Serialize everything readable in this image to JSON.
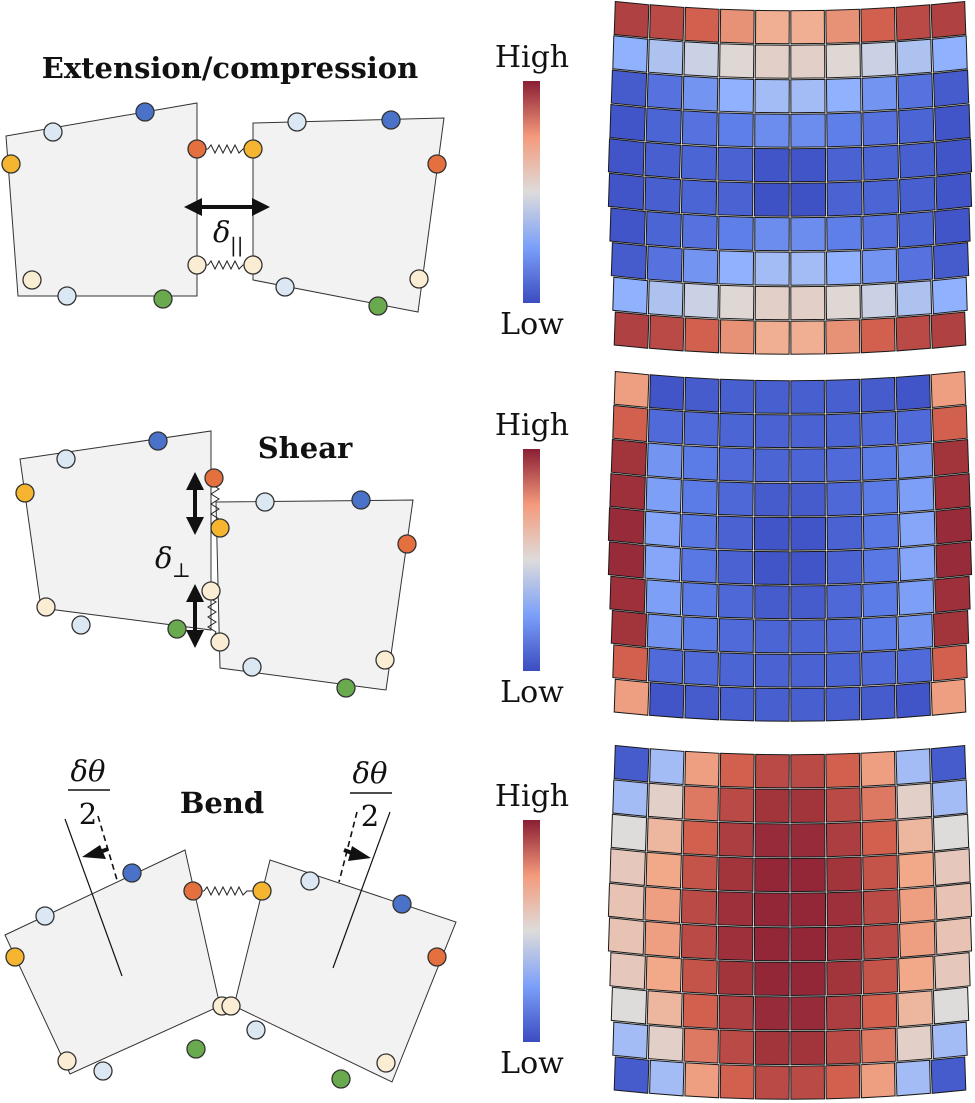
{
  "panels": [
    {
      "title": "Extension/compression",
      "delta_symbol": "δ",
      "delta_subscript": "||",
      "colorbar": {
        "high_label": "High",
        "low_label": "Low"
      }
    },
    {
      "title": "Shear",
      "delta_symbol": "δ",
      "delta_subscript": "⊥",
      "colorbar": {
        "high_label": "High",
        "low_label": "Low"
      }
    },
    {
      "title": "Bend",
      "angle_numerator": "δθ",
      "angle_denominator": "2",
      "colorbar": {
        "high_label": "High",
        "low_label": "Low"
      }
    }
  ],
  "colors": {
    "tile_fill": "#f2f2f2",
    "node_orange": "#e4703f",
    "node_yellow": "#f5b531",
    "node_blue": "#4a72c8",
    "node_lightblue": "#dbe8f4",
    "node_green": "#6aaa4f",
    "node_cream": "#fbedd3",
    "map_low": "#3b4cc0",
    "map_mid": "#dddcdb",
    "map_high": "#8a1e33"
  },
  "heatmaps": [
    {
      "name": "extension-energy-map",
      "rows": 10,
      "cols": 10,
      "values": [
        [
          0.92,
          0.9,
          0.85,
          0.75,
          0.68,
          0.68,
          0.75,
          0.85,
          0.9,
          0.92
        ],
        [
          0.3,
          0.38,
          0.45,
          0.52,
          0.55,
          0.55,
          0.52,
          0.45,
          0.38,
          0.3
        ],
        [
          0.05,
          0.12,
          0.22,
          0.3,
          0.35,
          0.35,
          0.3,
          0.22,
          0.12,
          0.05
        ],
        [
          0.03,
          0.08,
          0.12,
          0.16,
          0.2,
          0.2,
          0.16,
          0.12,
          0.08,
          0.03
        ],
        [
          0.03,
          0.06,
          0.08,
          0.07,
          0.03,
          0.03,
          0.07,
          0.08,
          0.06,
          0.03
        ],
        [
          0.03,
          0.06,
          0.08,
          0.07,
          0.02,
          0.02,
          0.07,
          0.08,
          0.06,
          0.03
        ],
        [
          0.03,
          0.08,
          0.12,
          0.16,
          0.2,
          0.2,
          0.16,
          0.12,
          0.08,
          0.03
        ],
        [
          0.05,
          0.12,
          0.22,
          0.3,
          0.35,
          0.35,
          0.3,
          0.22,
          0.12,
          0.05
        ],
        [
          0.3,
          0.38,
          0.45,
          0.52,
          0.55,
          0.55,
          0.52,
          0.45,
          0.38,
          0.3
        ],
        [
          0.92,
          0.9,
          0.85,
          0.75,
          0.68,
          0.68,
          0.75,
          0.85,
          0.9,
          0.92
        ]
      ]
    },
    {
      "name": "shear-energy-map",
      "rows": 10,
      "cols": 10,
      "values": [
        [
          0.72,
          0.03,
          0.05,
          0.06,
          0.06,
          0.06,
          0.06,
          0.05,
          0.03,
          0.72
        ],
        [
          0.85,
          0.1,
          0.1,
          0.08,
          0.07,
          0.07,
          0.08,
          0.1,
          0.1,
          0.85
        ],
        [
          0.95,
          0.22,
          0.15,
          0.1,
          0.08,
          0.08,
          0.1,
          0.15,
          0.22,
          0.95
        ],
        [
          0.96,
          0.25,
          0.15,
          0.09,
          0.05,
          0.05,
          0.09,
          0.15,
          0.25,
          0.96
        ],
        [
          0.97,
          0.27,
          0.14,
          0.07,
          0.03,
          0.03,
          0.07,
          0.14,
          0.27,
          0.97
        ],
        [
          0.97,
          0.27,
          0.14,
          0.07,
          0.03,
          0.03,
          0.07,
          0.14,
          0.27,
          0.97
        ],
        [
          0.96,
          0.25,
          0.15,
          0.09,
          0.05,
          0.05,
          0.09,
          0.15,
          0.25,
          0.96
        ],
        [
          0.95,
          0.22,
          0.15,
          0.1,
          0.08,
          0.08,
          0.1,
          0.15,
          0.22,
          0.95
        ],
        [
          0.85,
          0.1,
          0.1,
          0.08,
          0.07,
          0.07,
          0.08,
          0.1,
          0.1,
          0.85
        ],
        [
          0.72,
          0.03,
          0.05,
          0.06,
          0.06,
          0.06,
          0.06,
          0.05,
          0.03,
          0.72
        ]
      ]
    },
    {
      "name": "bend-energy-map",
      "rows": 10,
      "cols": 10,
      "values": [
        [
          0.05,
          0.35,
          0.72,
          0.85,
          0.9,
          0.9,
          0.85,
          0.72,
          0.35,
          0.05
        ],
        [
          0.35,
          0.55,
          0.8,
          0.9,
          0.95,
          0.95,
          0.9,
          0.8,
          0.55,
          0.35
        ],
        [
          0.5,
          0.65,
          0.85,
          0.93,
          0.97,
          0.97,
          0.93,
          0.85,
          0.65,
          0.5
        ],
        [
          0.58,
          0.7,
          0.88,
          0.95,
          0.98,
          0.98,
          0.95,
          0.88,
          0.7,
          0.58
        ],
        [
          0.6,
          0.72,
          0.9,
          0.96,
          0.98,
          0.98,
          0.96,
          0.9,
          0.72,
          0.6
        ],
        [
          0.6,
          0.72,
          0.9,
          0.96,
          0.98,
          0.98,
          0.96,
          0.9,
          0.72,
          0.6
        ],
        [
          0.58,
          0.7,
          0.88,
          0.95,
          0.98,
          0.98,
          0.95,
          0.88,
          0.7,
          0.58
        ],
        [
          0.5,
          0.65,
          0.85,
          0.93,
          0.97,
          0.97,
          0.93,
          0.85,
          0.65,
          0.5
        ],
        [
          0.35,
          0.55,
          0.8,
          0.9,
          0.95,
          0.95,
          0.9,
          0.8,
          0.55,
          0.35
        ],
        [
          0.05,
          0.35,
          0.72,
          0.85,
          0.9,
          0.9,
          0.85,
          0.72,
          0.35,
          0.05
        ]
      ]
    }
  ]
}
